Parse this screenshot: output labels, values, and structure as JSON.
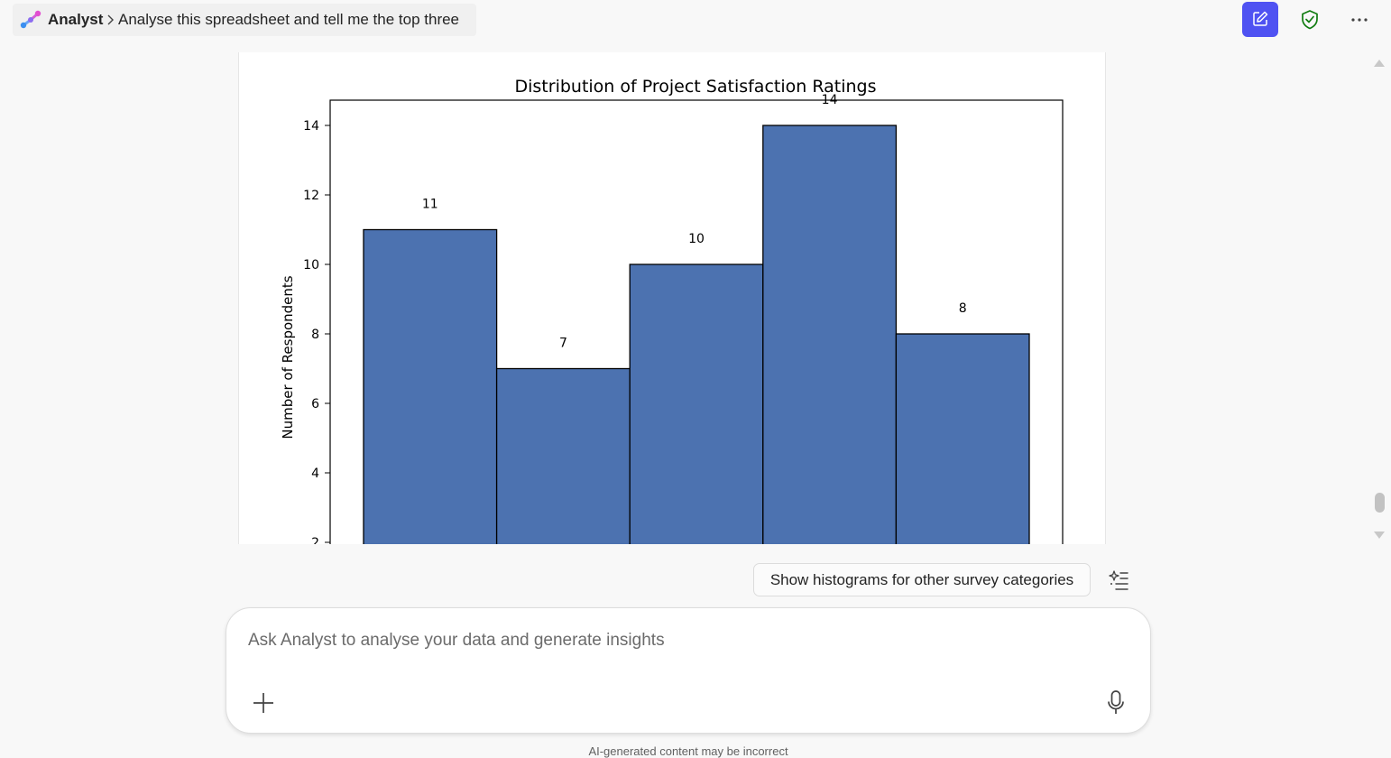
{
  "header": {
    "app_name": "Analyst",
    "conversation_title": "Analyse this spreadsheet and tell me the top three",
    "icons": {
      "logo": "analyst-logo-icon",
      "separator": "chevron-right-icon",
      "new_chat": "compose-icon",
      "protection": "shield-check-icon",
      "more": "more-horizontal-icon"
    },
    "accent_color": "#4f52f2",
    "shield_color": "#107c10"
  },
  "chart_data": {
    "type": "bar",
    "title": "Distribution of Project Satisfaction Ratings",
    "ylabel": "Number of Respondents",
    "xlabel": "",
    "values": [
      11,
      7,
      10,
      14,
      8
    ],
    "data_labels": [
      "11",
      "7",
      "10",
      "14",
      "8"
    ],
    "y_ticks": [
      "2",
      "4",
      "6",
      "8",
      "10",
      "12",
      "14"
    ],
    "y_tick_values": [
      2,
      4,
      6,
      8,
      10,
      12,
      14
    ],
    "ylim": [
      0,
      14.7
    ],
    "visible_y_range": [
      2,
      14.7
    ],
    "grid": false,
    "bar_color": "#4c72b0",
    "edge_color": "#000000"
  },
  "suggestion": {
    "label": "Show histograms for other survey categories",
    "icon": "sparkle-list-icon"
  },
  "composer": {
    "placeholder": "Ask Analyst to analyse your data and generate insights",
    "value": "",
    "add_icon": "plus-icon",
    "mic_icon": "microphone-icon"
  },
  "footer": {
    "note": "AI-generated content may be incorrect"
  }
}
